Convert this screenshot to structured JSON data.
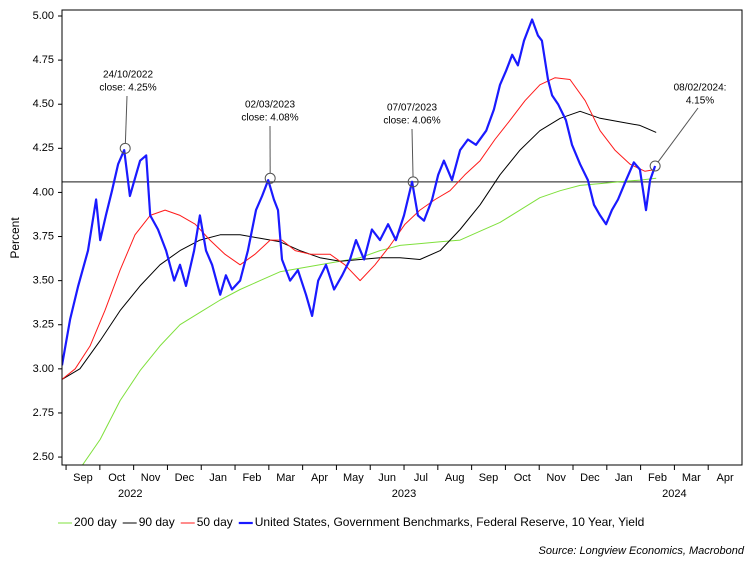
{
  "chart_data": {
    "type": "line",
    "y_axis_label": "Percent",
    "source": "Source: Longview Economics, Macrobond",
    "ylim": [
      2.455,
      5.034
    ],
    "yticks": [
      {
        "value": 2.5,
        "label": "2.50"
      },
      {
        "value": 2.75,
        "label": "2.75"
      },
      {
        "value": 3,
        "label": "3.00"
      },
      {
        "value": 3.25,
        "label": "3.25"
      },
      {
        "value": 3.5,
        "label": "3.50"
      },
      {
        "value": 3.75,
        "label": "3.75"
      },
      {
        "value": 4,
        "label": "4.00"
      },
      {
        "value": 4.25,
        "label": "4.25"
      },
      {
        "value": 4.5,
        "label": "4.50"
      },
      {
        "value": 4.75,
        "label": "4.75"
      },
      {
        "value": 5,
        "label": "5.00"
      }
    ],
    "xlim": [
      -0.12,
      20
    ],
    "xticks": [
      {
        "value": 0.5,
        "label": "Sep"
      },
      {
        "value": 1.5,
        "label": "Oct"
      },
      {
        "value": 2.5,
        "label": "Nov"
      },
      {
        "value": 3.5,
        "label": "Dec"
      },
      {
        "value": 4.5,
        "label": "Jan"
      },
      {
        "value": 5.5,
        "label": "Feb"
      },
      {
        "value": 6.5,
        "label": "Mar"
      },
      {
        "value": 7.5,
        "label": "Apr"
      },
      {
        "value": 8.5,
        "label": "May"
      },
      {
        "value": 9.5,
        "label": "Jun"
      },
      {
        "value": 10.5,
        "label": "Jul"
      },
      {
        "value": 11.5,
        "label": "Aug"
      },
      {
        "value": 12.5,
        "label": "Sep"
      },
      {
        "value": 13.5,
        "label": "Oct"
      },
      {
        "value": 14.5,
        "label": "Nov"
      },
      {
        "value": 15.5,
        "label": "Dec"
      },
      {
        "value": 16.5,
        "label": "Jan"
      },
      {
        "value": 17.5,
        "label": "Feb"
      },
      {
        "value": 18.5,
        "label": "Mar"
      },
      {
        "value": 19.5,
        "label": "Apr"
      }
    ],
    "year_labels": [
      {
        "label": "2022",
        "x": 1.9
      },
      {
        "label": "2023",
        "x": 10.0
      },
      {
        "label": "2024",
        "x": 18.0
      }
    ],
    "reference_line": 4.06,
    "series": [
      {
        "name": "200 day",
        "color": "#7fe03c",
        "width": 1,
        "x": [
          0.47,
          1.01,
          1.6,
          2.19,
          2.78,
          3.37,
          3.96,
          4.56,
          5.15,
          5.74,
          6.33,
          6.92,
          7.51,
          8.11,
          8.7,
          9.29,
          9.88,
          10.47,
          11.07,
          11.66,
          12.25,
          12.84,
          13.43,
          14.02,
          14.62,
          15.21,
          15.8,
          16.39,
          16.98,
          17.46
        ],
        "values": [
          2.45,
          2.6,
          2.82,
          2.99,
          3.13,
          3.25,
          3.32,
          3.39,
          3.45,
          3.5,
          3.55,
          3.57,
          3.59,
          3.61,
          3.63,
          3.67,
          3.7,
          3.71,
          3.72,
          3.73,
          3.78,
          3.83,
          3.9,
          3.97,
          4.01,
          4.04,
          4.05,
          4.06,
          4.07,
          4.08
        ]
      },
      {
        "name": "90 day",
        "color": "#000000",
        "width": 1,
        "x": [
          -0.12,
          0.41,
          1.01,
          1.6,
          2.19,
          2.78,
          3.37,
          3.96,
          4.56,
          5.15,
          5.74,
          6.33,
          6.92,
          7.51,
          8.11,
          8.7,
          9.29,
          9.88,
          10.47,
          11.07,
          11.66,
          12.25,
          12.84,
          13.43,
          14.02,
          14.62,
          15.21,
          15.8,
          16.39,
          16.98,
          17.46
        ],
        "values": [
          2.94,
          3.0,
          3.16,
          3.33,
          3.47,
          3.59,
          3.67,
          3.73,
          3.76,
          3.76,
          3.74,
          3.72,
          3.67,
          3.63,
          3.61,
          3.62,
          3.63,
          3.63,
          3.62,
          3.67,
          3.79,
          3.93,
          4.1,
          4.24,
          4.35,
          4.42,
          4.46,
          4.42,
          4.4,
          4.38,
          4.34
        ]
      },
      {
        "name": "50 day",
        "color": "#ff1a1a",
        "width": 1,
        "x": [
          -0.12,
          0.27,
          0.71,
          1.15,
          1.6,
          2.04,
          2.49,
          2.93,
          3.37,
          3.82,
          4.26,
          4.7,
          5.15,
          5.59,
          6.04,
          6.39,
          6.78,
          7.22,
          7.81,
          8.25,
          8.7,
          9.14,
          9.59,
          10.03,
          10.47,
          10.92,
          11.36,
          11.8,
          12.25,
          12.69,
          13.14,
          13.58,
          14.02,
          14.47,
          14.91,
          15.36,
          15.8,
          16.24,
          16.69,
          17.13,
          17.43
        ],
        "values": [
          2.94,
          3.0,
          3.13,
          3.33,
          3.56,
          3.76,
          3.87,
          3.9,
          3.87,
          3.82,
          3.73,
          3.65,
          3.59,
          3.65,
          3.73,
          3.73,
          3.67,
          3.65,
          3.65,
          3.59,
          3.5,
          3.59,
          3.7,
          3.82,
          3.9,
          3.96,
          4.01,
          4.1,
          4.18,
          4.3,
          4.41,
          4.52,
          4.61,
          4.65,
          4.64,
          4.52,
          4.35,
          4.24,
          4.16,
          4.12,
          4.13
        ]
      },
      {
        "name": "United States, Government Benchmarks, Federal Reserve, 10 Year, Yield",
        "color": "#1a1aff",
        "width": 2.2,
        "x": [
          -0.12,
          0.12,
          0.36,
          0.65,
          0.89,
          1.01,
          1.18,
          1.36,
          1.54,
          1.72,
          1.89,
          2.07,
          2.19,
          2.37,
          2.49,
          2.72,
          2.96,
          3.2,
          3.37,
          3.55,
          3.79,
          3.96,
          4.14,
          4.32,
          4.56,
          4.73,
          4.91,
          5.15,
          5.38,
          5.62,
          5.8,
          5.98,
          6.15,
          6.27,
          6.39,
          6.63,
          6.86,
          7.1,
          7.28,
          7.46,
          7.69,
          7.93,
          8.17,
          8.4,
          8.58,
          8.82,
          9.05,
          9.29,
          9.53,
          9.76,
          10.0,
          10.24,
          10.41,
          10.59,
          10.83,
          11.01,
          11.18,
          11.42,
          11.66,
          11.89,
          12.13,
          12.43,
          12.66,
          12.84,
          13.02,
          13.2,
          13.37,
          13.55,
          13.79,
          13.96,
          14.08,
          14.26,
          14.38,
          14.56,
          14.79,
          14.97,
          15.21,
          15.44,
          15.62,
          15.8,
          15.98,
          16.15,
          16.33,
          16.57,
          16.8,
          16.98,
          17.16,
          17.28,
          17.43
        ],
        "values": [
          3.02,
          3.28,
          3.47,
          3.67,
          3.96,
          3.73,
          3.87,
          4.01,
          4.16,
          4.24,
          3.98,
          4.1,
          4.18,
          4.21,
          3.87,
          3.79,
          3.67,
          3.5,
          3.59,
          3.47,
          3.67,
          3.87,
          3.67,
          3.59,
          3.42,
          3.53,
          3.45,
          3.5,
          3.67,
          3.9,
          3.98,
          4.07,
          3.96,
          3.9,
          3.62,
          3.5,
          3.56,
          3.42,
          3.3,
          3.5,
          3.59,
          3.45,
          3.53,
          3.62,
          3.73,
          3.62,
          3.79,
          3.73,
          3.82,
          3.73,
          3.87,
          4.06,
          3.87,
          3.84,
          3.96,
          4.1,
          4.18,
          4.07,
          4.24,
          4.3,
          4.27,
          4.35,
          4.47,
          4.61,
          4.69,
          4.78,
          4.72,
          4.86,
          4.98,
          4.89,
          4.86,
          4.64,
          4.55,
          4.5,
          4.41,
          4.27,
          4.16,
          4.07,
          3.93,
          3.87,
          3.82,
          3.9,
          3.96,
          4.07,
          4.17,
          4.13,
          3.9,
          4.07,
          4.15
        ]
      }
    ],
    "annotations": [
      {
        "date": "24/10/2022",
        "label": "close: 4.25%",
        "x": 1.75,
        "y": 4.25
      },
      {
        "date": "02/03/2023",
        "label": "close: 4.08%",
        "x": 6.04,
        "y": 4.08
      },
      {
        "date": "07/07/2023",
        "label": "close: 4.06%",
        "x": 10.27,
        "y": 4.06
      },
      {
        "date": "08/02/2024:",
        "label": "4.15%",
        "x": 17.43,
        "y": 4.15
      }
    ]
  }
}
